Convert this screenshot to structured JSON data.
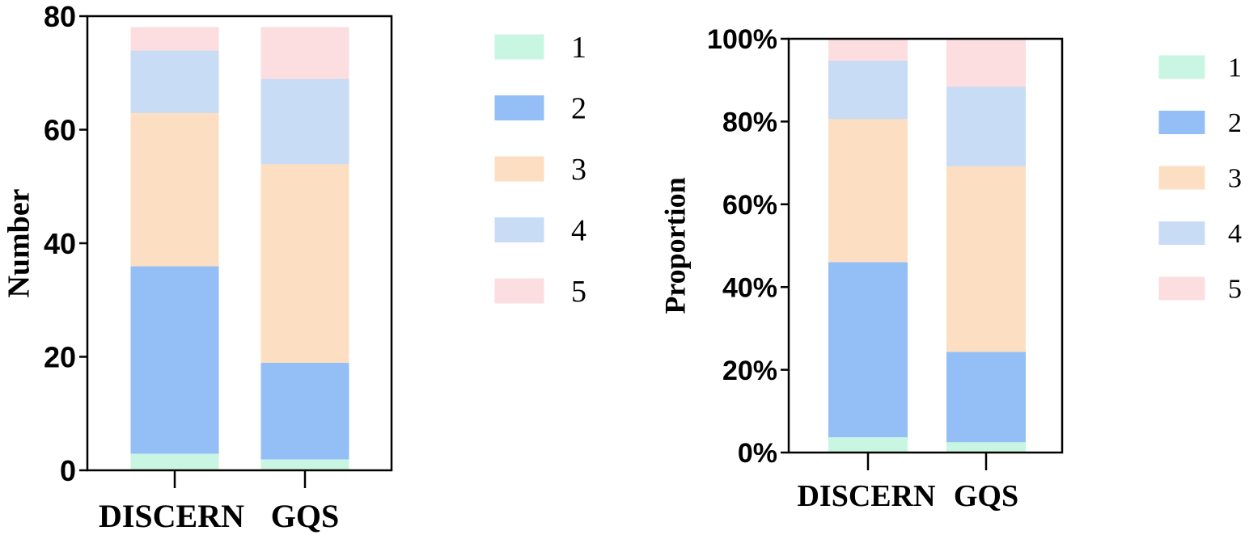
{
  "chart_data": [
    {
      "type": "bar",
      "stacked": true,
      "categories": [
        "DISCERN",
        "GQS"
      ],
      "ylabel": "Number",
      "xlabel": "",
      "ylim": [
        0,
        80
      ],
      "yticks": [
        0,
        20,
        40,
        60,
        80
      ],
      "ytick_labels": [
        "0",
        "20",
        "40",
        "60",
        "80"
      ],
      "grid": false,
      "legend": "right",
      "series": [
        {
          "name": "1",
          "values": [
            3,
            2
          ],
          "color": "#c9f5e3"
        },
        {
          "name": "2",
          "values": [
            33,
            17
          ],
          "color": "#93bff6"
        },
        {
          "name": "3",
          "values": [
            27,
            35
          ],
          "color": "#fcdfc2"
        },
        {
          "name": "4",
          "values": [
            11,
            15
          ],
          "color": "#c9dcf6"
        },
        {
          "name": "5",
          "values": [
            4,
            9
          ],
          "color": "#fcdde0"
        }
      ]
    },
    {
      "type": "bar",
      "stacked": true,
      "categories": [
        "DISCERN",
        "GQS"
      ],
      "ylabel": "Proportion",
      "xlabel": "",
      "ylim": [
        0,
        100
      ],
      "yticks": [
        0,
        20,
        40,
        60,
        80,
        100
      ],
      "ytick_labels": [
        "0%",
        "20%",
        "40%",
        "60%",
        "80%",
        "100%"
      ],
      "grid": false,
      "legend": "right",
      "series": [
        {
          "name": "1",
          "values": [
            3.8,
            2.6
          ],
          "color": "#c9f5e3"
        },
        {
          "name": "2",
          "values": [
            42.3,
            21.8
          ],
          "color": "#93bff6"
        },
        {
          "name": "3",
          "values": [
            34.6,
            44.9
          ],
          "color": "#fcdfc2"
        },
        {
          "name": "4",
          "values": [
            14.1,
            19.2
          ],
          "color": "#c9dcf6"
        },
        {
          "name": "5",
          "values": [
            5.1,
            11.5
          ],
          "color": "#fcdde0"
        }
      ]
    }
  ]
}
